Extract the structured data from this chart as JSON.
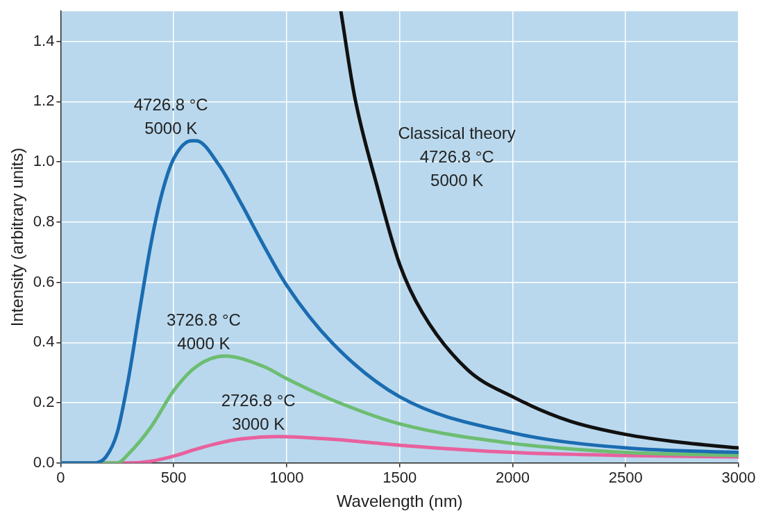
{
  "chart_data": {
    "type": "line",
    "xlabel": "Wavelength (nm)",
    "ylabel": "Intensity (arbitrary units)",
    "xlim": [
      0,
      3000
    ],
    "xticks": [
      0,
      500,
      1000,
      1500,
      2000,
      2500,
      3000
    ],
    "ylim": [
      0,
      1.5
    ],
    "yticks": [
      {
        "value": 0,
        "label": "0.0"
      },
      0.2,
      0.4,
      0.6,
      0.8,
      {
        "value": 1,
        "label": "1.0"
      },
      1.2,
      1.4
    ],
    "grid": true,
    "legend": false,
    "marker": "none",
    "line_style": "solid",
    "series": [
      {
        "name": "4726.8 °C\n5000 K",
        "color": "#1b6cb1",
        "x": [
          0,
          100,
          150,
          200,
          250,
          300,
          350,
          400,
          450,
          500,
          580,
          600,
          700,
          800,
          900,
          1000,
          1200,
          1500,
          2000,
          2500,
          3000
        ],
        "values": [
          0,
          0,
          0,
          0.02,
          0.1,
          0.28,
          0.51,
          0.73,
          0.9,
          1.01,
          1.07,
          1.07,
          0.99,
          0.86,
          0.72,
          0.59,
          0.4,
          0.22,
          0.1,
          0.05,
          0.035
        ]
      },
      {
        "name": "3726.8 °C\n4000 K",
        "color": "#6dbd72",
        "x": [
          0,
          200,
          250,
          300,
          400,
          500,
          600,
          725,
          900,
          1000,
          1200,
          1500,
          2000,
          2500,
          3000
        ],
        "values": [
          0,
          0,
          0,
          0.03,
          0.12,
          0.24,
          0.32,
          0.355,
          0.32,
          0.28,
          0.21,
          0.13,
          0.065,
          0.035,
          0.025
        ]
      },
      {
        "name": "2726.8 °C\n3000 K",
        "color": "#e8619e",
        "x": [
          0,
          300,
          400,
          500,
          600,
          700,
          800,
          967,
          1200,
          1500,
          2000,
          2500,
          3000
        ],
        "values": [
          0,
          0,
          0.006,
          0.023,
          0.046,
          0.066,
          0.08,
          0.088,
          0.079,
          0.059,
          0.035,
          0.025,
          0.02
        ]
      },
      {
        "name": "Classical theory\n4726.8 °C\n5000 K",
        "color": "#111111",
        "x": [
          1240,
          1300,
          1400,
          1500,
          1600,
          1800,
          2000,
          2250,
          2500,
          2750,
          3000
        ],
        "values": [
          1.5,
          1.22,
          0.92,
          0.66,
          0.5,
          0.31,
          0.22,
          0.14,
          0.095,
          0.068,
          0.05
        ]
      }
    ]
  }
}
